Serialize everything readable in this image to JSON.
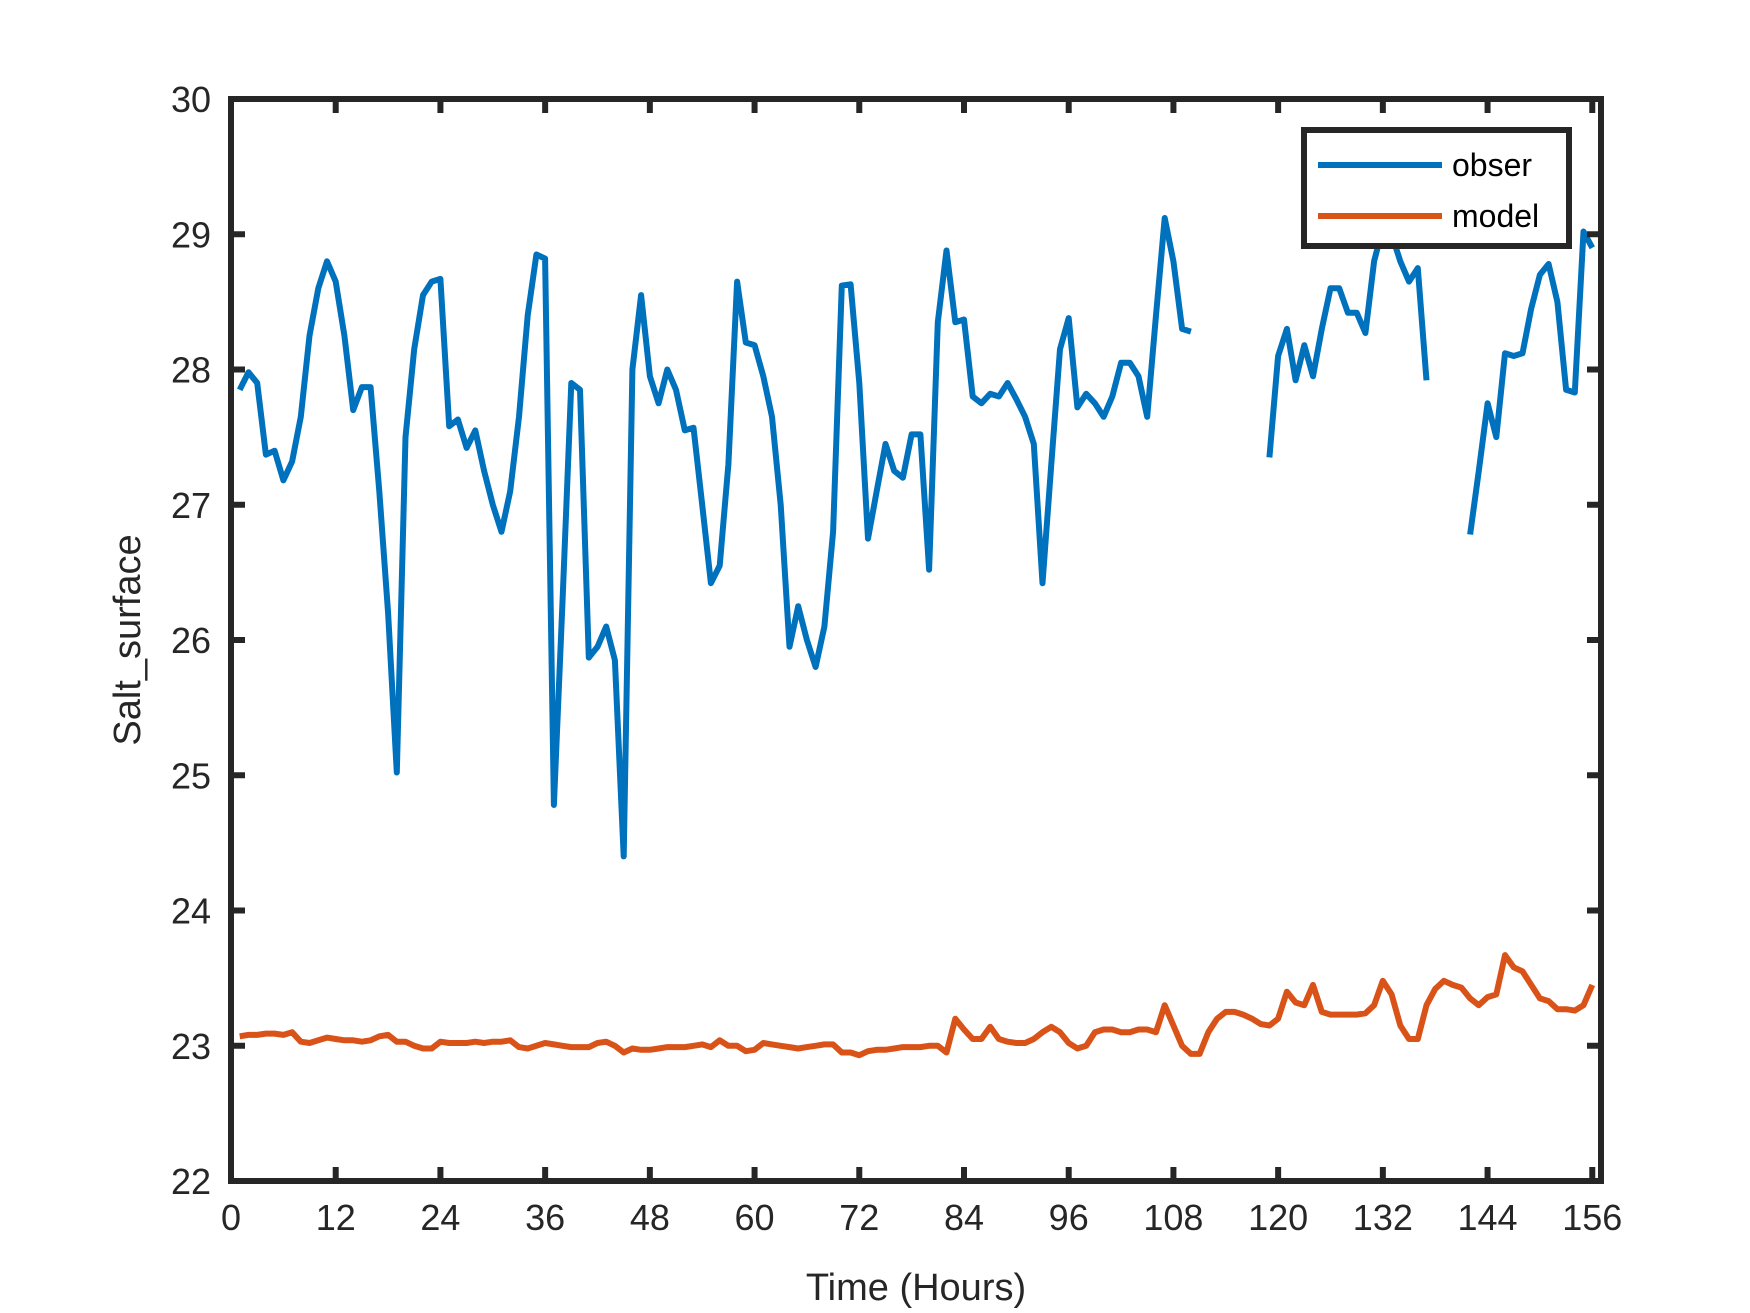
{
  "chart_data": {
    "type": "line",
    "title": "",
    "xlabel": "Time (Hours)",
    "ylabel": "Salt_surface",
    "xlim": [
      0,
      157
    ],
    "ylim": [
      22,
      30
    ],
    "xticks": [
      0,
      12,
      24,
      36,
      48,
      60,
      72,
      84,
      96,
      108,
      120,
      132,
      144,
      156
    ],
    "yticks": [
      22,
      23,
      24,
      25,
      26,
      27,
      28,
      29,
      30
    ],
    "grid": false,
    "legend_position": "top-right",
    "x_start": 1,
    "x_step": 1,
    "series": [
      {
        "name": "obser",
        "color": "#0072BD",
        "values": [
          27.85,
          27.98,
          27.9,
          27.37,
          27.4,
          27.18,
          27.32,
          27.65,
          28.25,
          28.6,
          28.8,
          28.65,
          28.25,
          27.7,
          27.87,
          27.87,
          27.1,
          26.2,
          25.02,
          27.5,
          28.15,
          28.55,
          28.65,
          28.67,
          27.58,
          27.63,
          27.42,
          27.55,
          27.25,
          27.0,
          26.8,
          27.1,
          27.65,
          28.4,
          28.85,
          28.82,
          24.78,
          26.3,
          27.9,
          27.85,
          25.87,
          25.95,
          26.1,
          25.85,
          24.4,
          28.0,
          28.55,
          27.95,
          27.75,
          28.0,
          27.85,
          27.55,
          27.57,
          27.0,
          26.42,
          26.55,
          27.3,
          28.65,
          28.2,
          28.18,
          27.95,
          27.65,
          27.0,
          25.95,
          26.25,
          26.0,
          25.8,
          26.1,
          26.8,
          28.62,
          28.63,
          27.9,
          26.75,
          27.1,
          27.45,
          27.25,
          27.2,
          27.52,
          27.52,
          26.52,
          28.35,
          28.88,
          28.35,
          28.37,
          27.8,
          27.75,
          27.82,
          27.8,
          27.9,
          27.78,
          27.65,
          27.45,
          26.42,
          27.3,
          28.15,
          28.38,
          27.72,
          27.82,
          27.75,
          27.65,
          27.8,
          28.05,
          28.05,
          27.95,
          27.65,
          28.4,
          29.12,
          28.8,
          28.3,
          28.28,
          null,
          null,
          null,
          null,
          null,
          null,
          null,
          null,
          27.35,
          28.1,
          28.3,
          27.92,
          28.18,
          27.95,
          28.3,
          28.6,
          28.6,
          28.42,
          28.42,
          28.27,
          28.8,
          29.05,
          29.0,
          28.8,
          28.65,
          28.75,
          27.92,
          null,
          null,
          null,
          null,
          26.78,
          27.25,
          27.75,
          27.5,
          28.12,
          28.1,
          28.12,
          28.45,
          28.7,
          28.78,
          28.5,
          27.85,
          27.83,
          29.02,
          28.9
        ]
      },
      {
        "name": "model",
        "color": "#D95319",
        "values": [
          23.07,
          23.08,
          23.08,
          23.09,
          23.09,
          23.08,
          23.1,
          23.03,
          23.02,
          23.04,
          23.06,
          23.05,
          23.04,
          23.04,
          23.03,
          23.04,
          23.07,
          23.08,
          23.03,
          23.03,
          23.0,
          22.98,
          22.98,
          23.03,
          23.02,
          23.02,
          23.02,
          23.03,
          23.02,
          23.03,
          23.03,
          23.04,
          22.99,
          22.98,
          23.0,
          23.02,
          23.01,
          23.0,
          22.99,
          22.99,
          22.99,
          23.02,
          23.03,
          23.0,
          22.95,
          22.98,
          22.97,
          22.97,
          22.98,
          22.99,
          22.99,
          22.99,
          23.0,
          23.01,
          22.99,
          23.04,
          23.0,
          23.0,
          22.96,
          22.97,
          23.02,
          23.01,
          23.0,
          22.99,
          22.98,
          22.99,
          23.0,
          23.01,
          23.01,
          22.95,
          22.95,
          22.93,
          22.96,
          22.97,
          22.97,
          22.98,
          22.99,
          22.99,
          22.99,
          23.0,
          23.0,
          22.95,
          23.2,
          23.12,
          23.05,
          23.05,
          23.14,
          23.05,
          23.03,
          23.02,
          23.02,
          23.05,
          23.1,
          23.14,
          23.1,
          23.02,
          22.98,
          23.0,
          23.1,
          23.12,
          23.12,
          23.1,
          23.1,
          23.12,
          23.12,
          23.1,
          23.3,
          23.15,
          23.0,
          22.94,
          22.94,
          23.1,
          23.2,
          23.25,
          23.25,
          23.23,
          23.2,
          23.16,
          23.15,
          23.2,
          23.4,
          23.32,
          23.3,
          23.45,
          23.25,
          23.23,
          23.23,
          23.23,
          23.23,
          23.24,
          23.3,
          23.48,
          23.38,
          23.15,
          23.05,
          23.05,
          23.3,
          23.42,
          23.48,
          23.45,
          23.43,
          23.35,
          23.3,
          23.36,
          23.38,
          23.67,
          23.58,
          23.55,
          23.45,
          23.35,
          23.33,
          23.27,
          23.27,
          23.26,
          23.3,
          23.45
        ]
      }
    ]
  }
}
